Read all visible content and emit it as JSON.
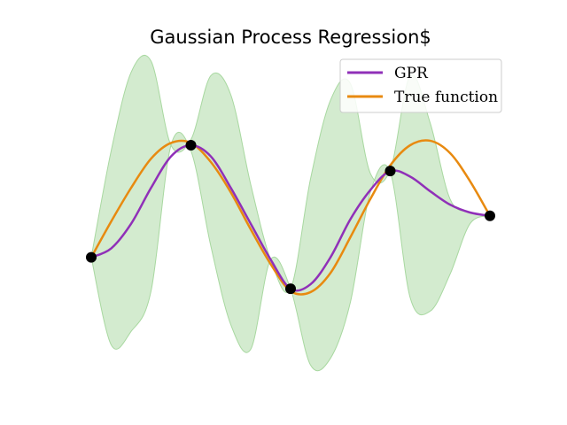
{
  "chart_data": {
    "type": "line",
    "title": "Gaussian Process Regression$",
    "xlabel": "",
    "ylabel": "",
    "axes_visible": false,
    "grid": false,
    "legend_position": "top-right",
    "colors": {
      "gpr": "#9030b8",
      "true_function": "#e88a10",
      "band": "#a8d8a0",
      "points": "#000000"
    },
    "series": [
      {
        "name": "GPR",
        "kind": "mean",
        "x": [
          0.0,
          0.05,
          0.1,
          0.15,
          0.2,
          0.25,
          0.3,
          0.35,
          0.4,
          0.45,
          0.5,
          0.55,
          0.6,
          0.65,
          0.7,
          0.75,
          0.8,
          0.85,
          0.9,
          0.95,
          1.0
        ],
        "y": [
          0.0,
          0.08,
          0.3,
          0.62,
          0.9,
          1.0,
          0.9,
          0.62,
          0.3,
          -0.02,
          -0.28,
          -0.24,
          0.0,
          0.34,
          0.6,
          0.77,
          0.72,
          0.59,
          0.47,
          0.4,
          0.37
        ]
      },
      {
        "name": "True function",
        "kind": "truth",
        "x": [
          0.0,
          0.05,
          0.1,
          0.15,
          0.2,
          0.25,
          0.3,
          0.35,
          0.4,
          0.45,
          0.5,
          0.55,
          0.6,
          0.65,
          0.7,
          0.75,
          0.8,
          0.85,
          0.9,
          0.95,
          1.0
        ],
        "y": [
          0.0,
          0.32,
          0.62,
          0.88,
          1.02,
          1.02,
          0.85,
          0.58,
          0.25,
          -0.06,
          -0.3,
          -0.31,
          -0.14,
          0.18,
          0.52,
          0.82,
          1.0,
          1.04,
          0.93,
          0.68,
          0.37
        ]
      }
    ],
    "confidence_band": {
      "x": [
        0.0,
        0.05,
        0.1,
        0.15,
        0.2,
        0.25,
        0.3,
        0.35,
        0.4,
        0.45,
        0.5,
        0.55,
        0.6,
        0.65,
        0.7,
        0.75,
        0.8,
        0.85,
        0.9,
        0.95,
        1.0
      ],
      "upper": [
        0.0,
        0.95,
        1.65,
        1.75,
        1.0,
        1.05,
        1.62,
        1.45,
        0.65,
        -0.02,
        -0.28,
        0.7,
        1.4,
        1.55,
        0.75,
        0.78,
        1.62,
        1.2,
        0.52,
        0.4,
        0.37
      ],
      "lower": [
        0.0,
        -0.78,
        -0.66,
        -0.3,
        1.0,
        0.95,
        0.1,
        -0.6,
        -0.82,
        -0.02,
        -0.28,
        -0.96,
        -0.9,
        -0.4,
        0.58,
        0.76,
        -0.36,
        -0.48,
        -0.15,
        0.3,
        0.37
      ]
    },
    "observations": {
      "x": [
        0.0,
        0.25,
        0.5,
        0.75,
        1.0
      ],
      "y": [
        0.0,
        1.0,
        -0.28,
        0.77,
        0.37
      ]
    },
    "xlim": [
      0.0,
      1.0
    ],
    "ylim": [
      -1.1,
      1.9
    ]
  }
}
